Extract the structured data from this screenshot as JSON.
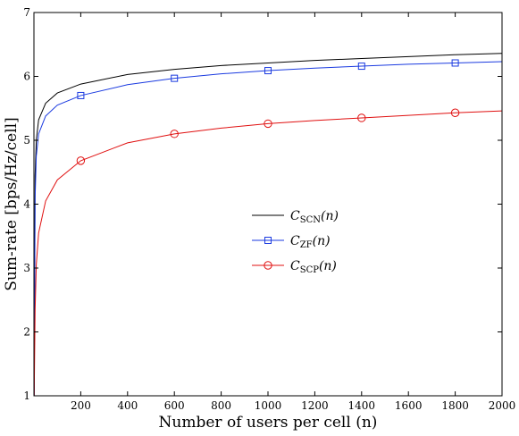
{
  "chart_data": {
    "type": "line",
    "xlabel": "Number of users per cell (n)",
    "ylabel": "Sum-rate [bps/Hz/cell]",
    "xlim": [
      0,
      2000
    ],
    "ylim": [
      1,
      7
    ],
    "x_ticks": [
      "200",
      "400",
      "600",
      "800",
      "1000",
      "1200",
      "1400",
      "1600",
      "1800",
      "2000"
    ],
    "y_ticks": [
      "1",
      "2",
      "3",
      "4",
      "5",
      "6",
      "7"
    ],
    "grid": false,
    "legend_position": "center-right",
    "series": [
      {
        "name": "C_SCN(n)",
        "legend_main": "C",
        "legend_sub": "SCN",
        "legend_arg": "(n)",
        "color": "#000000",
        "marker": "none",
        "x": [
          1,
          5,
          10,
          20,
          50,
          100,
          200,
          400,
          600,
          800,
          1000,
          1200,
          1400,
          1600,
          1800,
          2000
        ],
        "values": [
          1.0,
          4.45,
          5.0,
          5.32,
          5.58,
          5.74,
          5.88,
          6.03,
          6.11,
          6.17,
          6.21,
          6.25,
          6.28,
          6.31,
          6.34,
          6.36
        ]
      },
      {
        "name": "C_ZF(n)",
        "legend_main": "C",
        "legend_sub": "ZF",
        "legend_arg": "(n)",
        "color": "#1a3ae0",
        "marker": "square",
        "x": [
          1,
          5,
          10,
          20,
          50,
          100,
          200,
          400,
          600,
          800,
          1000,
          1200,
          1400,
          1600,
          1800,
          2000
        ],
        "values": [
          1.0,
          4.1,
          4.75,
          5.1,
          5.38,
          5.55,
          5.7,
          5.87,
          5.97,
          6.04,
          6.09,
          6.13,
          6.16,
          6.19,
          6.21,
          6.23
        ],
        "marker_x": [
          200,
          600,
          1000,
          1400,
          1800
        ],
        "marker_values": [
          5.7,
          5.97,
          6.09,
          6.16,
          6.21
        ]
      },
      {
        "name": "C_SCP(n)",
        "legend_main": "C",
        "legend_sub": "SCP",
        "legend_arg": "(n)",
        "color": "#e01010",
        "marker": "circle",
        "x": [
          1,
          5,
          10,
          20,
          50,
          100,
          200,
          400,
          600,
          800,
          1000,
          1200,
          1400,
          1600,
          1800,
          2000
        ],
        "values": [
          1.0,
          2.35,
          3.05,
          3.55,
          4.05,
          4.38,
          4.68,
          4.96,
          5.1,
          5.19,
          5.26,
          5.31,
          5.35,
          5.39,
          5.43,
          5.46
        ],
        "marker_x": [
          200,
          600,
          1000,
          1400,
          1800
        ],
        "marker_values": [
          4.68,
          5.1,
          5.26,
          5.35,
          5.43
        ]
      }
    ]
  }
}
